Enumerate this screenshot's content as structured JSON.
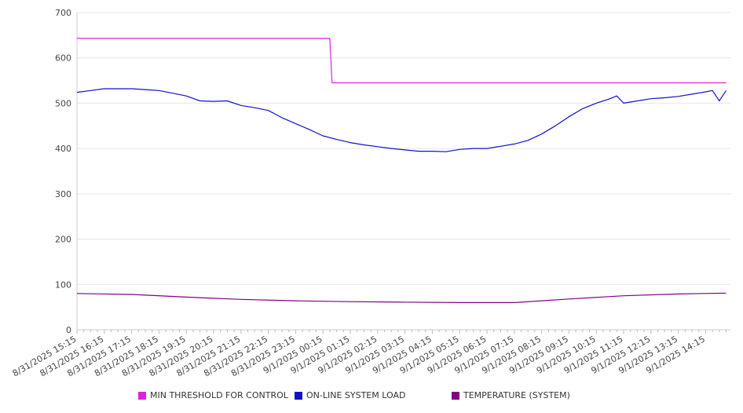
{
  "chart_data": {
    "type": "line",
    "ylim": [
      0,
      700
    ],
    "y_ticks": [
      0,
      100,
      200,
      300,
      400,
      500,
      600,
      700
    ],
    "grid": true,
    "legend_position": "bottom",
    "x_tick_labels": [
      "8/31/2025 15:15",
      "8/31/2025 16:15",
      "8/31/2025 17:15",
      "8/31/2025 18:15",
      "8/31/2025 19:15",
      "8/31/2025 20:15",
      "8/31/2025 21:15",
      "8/31/2025 22:15",
      "8/31/2025 23:15",
      "9/1/2025 00:15",
      "9/1/2025 01:15",
      "9/1/2025 02:15",
      "9/1/2025 03:15",
      "9/1/2025 04:15",
      "9/1/2025 05:15",
      "9/1/2025 06:15",
      "9/1/2025 07:15",
      "9/1/2025 08:15",
      "9/1/2025 09:15",
      "9/1/2025 10:15",
      "9/1/2025 11:15",
      "9/1/2025 12:15",
      "9/1/2025 13:15",
      "9/1/2025 14:15"
    ],
    "series": [
      {
        "name": "MIN THRESHOLD FOR CONTROL",
        "color": "#e020e0",
        "x": [
          "8/31/2025 15:15",
          "9/1/2025 00:30",
          "9/1/2025 00:35",
          "9/1/2025 15:00"
        ],
        "values": [
          643,
          643,
          545,
          545
        ]
      },
      {
        "name": "ON-LINE SYSTEM LOAD",
        "color": "#1010cc",
        "x": [
          "8/31/2025 15:15",
          "8/31/2025 15:45",
          "8/31/2025 16:15",
          "8/31/2025 16:45",
          "8/31/2025 17:15",
          "8/31/2025 17:45",
          "8/31/2025 18:15",
          "8/31/2025 18:45",
          "8/31/2025 19:15",
          "8/31/2025 19:45",
          "8/31/2025 20:15",
          "8/31/2025 20:45",
          "8/31/2025 21:15",
          "8/31/2025 21:45",
          "8/31/2025 22:15",
          "8/31/2025 22:45",
          "8/31/2025 23:15",
          "8/31/2025 23:45",
          "9/1/2025 00:15",
          "9/1/2025 00:45",
          "9/1/2025 01:15",
          "9/1/2025 01:45",
          "9/1/2025 02:15",
          "9/1/2025 02:45",
          "9/1/2025 03:15",
          "9/1/2025 03:45",
          "9/1/2025 04:15",
          "9/1/2025 04:45",
          "9/1/2025 05:15",
          "9/1/2025 05:45",
          "9/1/2025 06:15",
          "9/1/2025 06:45",
          "9/1/2025 07:15",
          "9/1/2025 07:45",
          "9/1/2025 08:15",
          "9/1/2025 08:45",
          "9/1/2025 09:15",
          "9/1/2025 09:45",
          "9/1/2025 10:15",
          "9/1/2025 10:45",
          "9/1/2025 11:00",
          "9/1/2025 11:15",
          "9/1/2025 11:45",
          "9/1/2025 12:15",
          "9/1/2025 12:45",
          "9/1/2025 13:15",
          "9/1/2025 13:45",
          "9/1/2025 14:15",
          "9/1/2025 14:30",
          "9/1/2025 14:45",
          "9/1/2025 15:00"
        ],
        "values": [
          524,
          528,
          532,
          532,
          532,
          530,
          528,
          522,
          516,
          505,
          504,
          505,
          495,
          490,
          484,
          468,
          455,
          442,
          428,
          420,
          413,
          408,
          404,
          400,
          397,
          394,
          394,
          393,
          398,
          400,
          400,
          405,
          410,
          418,
          432,
          450,
          470,
          488,
          500,
          510,
          516,
          500,
          505,
          510,
          512,
          515,
          520,
          525,
          528,
          505,
          528
        ]
      },
      {
        "name": "TEMPERATURE (SYSTEM)",
        "color": "#800080",
        "x": [
          "8/31/2025 15:15",
          "8/31/2025 17:15",
          "8/31/2025 19:15",
          "8/31/2025 21:15",
          "8/31/2025 23:15",
          "9/1/2025 01:15",
          "9/1/2025 03:15",
          "9/1/2025 05:15",
          "9/1/2025 07:15",
          "9/1/2025 09:15",
          "9/1/2025 11:15",
          "9/1/2025 13:15",
          "9/1/2025 15:00"
        ],
        "values": [
          80,
          78,
          72,
          67,
          64,
          62,
          61,
          60,
          60,
          68,
          75,
          79,
          81
        ]
      }
    ]
  }
}
